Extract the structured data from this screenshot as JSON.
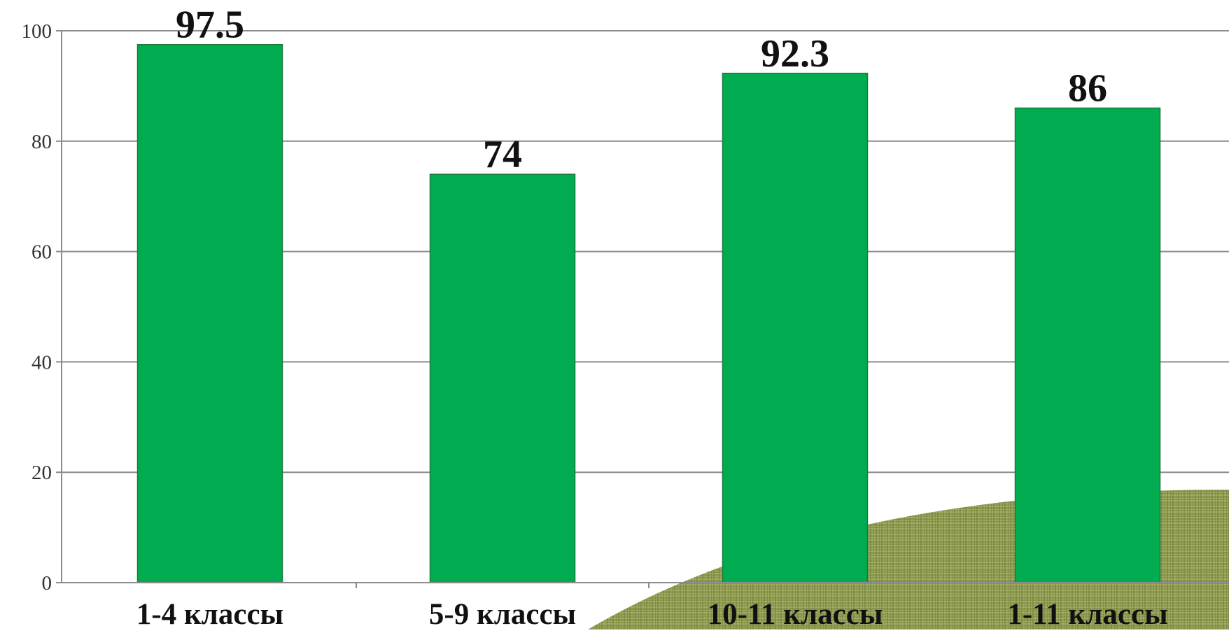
{
  "chart_data": {
    "type": "bar",
    "title": "",
    "xlabel": "",
    "ylabel": "",
    "categories": [
      "1-4 классы",
      "5-9 классы",
      "10-11 классы",
      "1-11 классы"
    ],
    "values": [
      97.5,
      74,
      92.3,
      86
    ],
    "data_labels": [
      "97.5",
      "74",
      "92.3",
      "86"
    ],
    "ylim": [
      0,
      100
    ],
    "yticks": [
      0,
      20,
      40,
      60,
      80,
      100
    ],
    "grid": true,
    "legend": "none"
  },
  "colors": {
    "bar": "#00ac4f",
    "bar_edge": "#1b7a3b",
    "gridline": "#8c8c8c",
    "axis": "#8c8c8c",
    "tick_text": "#333333",
    "label_text": "#111111",
    "background_texture": "#8d9a4e",
    "background_texture_light": "#b3bd78"
  }
}
